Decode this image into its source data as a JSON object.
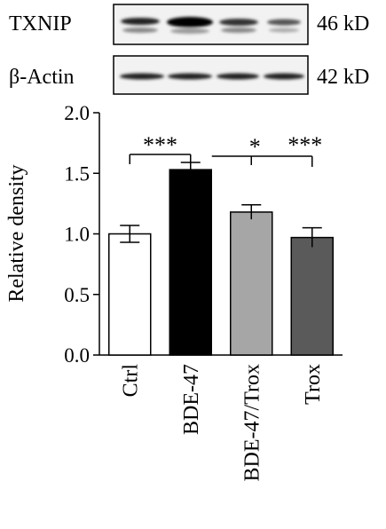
{
  "blot": {
    "rows": [
      {
        "label": "TXNIP",
        "size": "46 kD"
      },
      {
        "label": "β-Actin",
        "size": "42 kD"
      }
    ]
  },
  "chart_data": {
    "type": "bar",
    "ylabel": "Relative density",
    "categories": [
      "Ctrl",
      "BDE-47",
      "BDE-47/Trox",
      "Trox"
    ],
    "values": [
      1.0,
      1.53,
      1.18,
      0.97
    ],
    "errors": [
      0.07,
      0.06,
      0.06,
      0.08
    ],
    "colors": [
      "#ffffff",
      "#000000",
      "#a6a6a6",
      "#5a5a5a"
    ],
    "ylim": [
      0,
      2
    ],
    "yticks": [
      {
        "value": 0,
        "label": "0.0"
      },
      {
        "value": 0.5,
        "label": "0.5"
      },
      {
        "value": 1,
        "label": "1.0"
      },
      {
        "value": 1.5,
        "label": "1.5"
      },
      {
        "value": 2,
        "label": "2.0"
      }
    ],
    "annotations": [
      "***",
      "*",
      "***"
    ]
  }
}
